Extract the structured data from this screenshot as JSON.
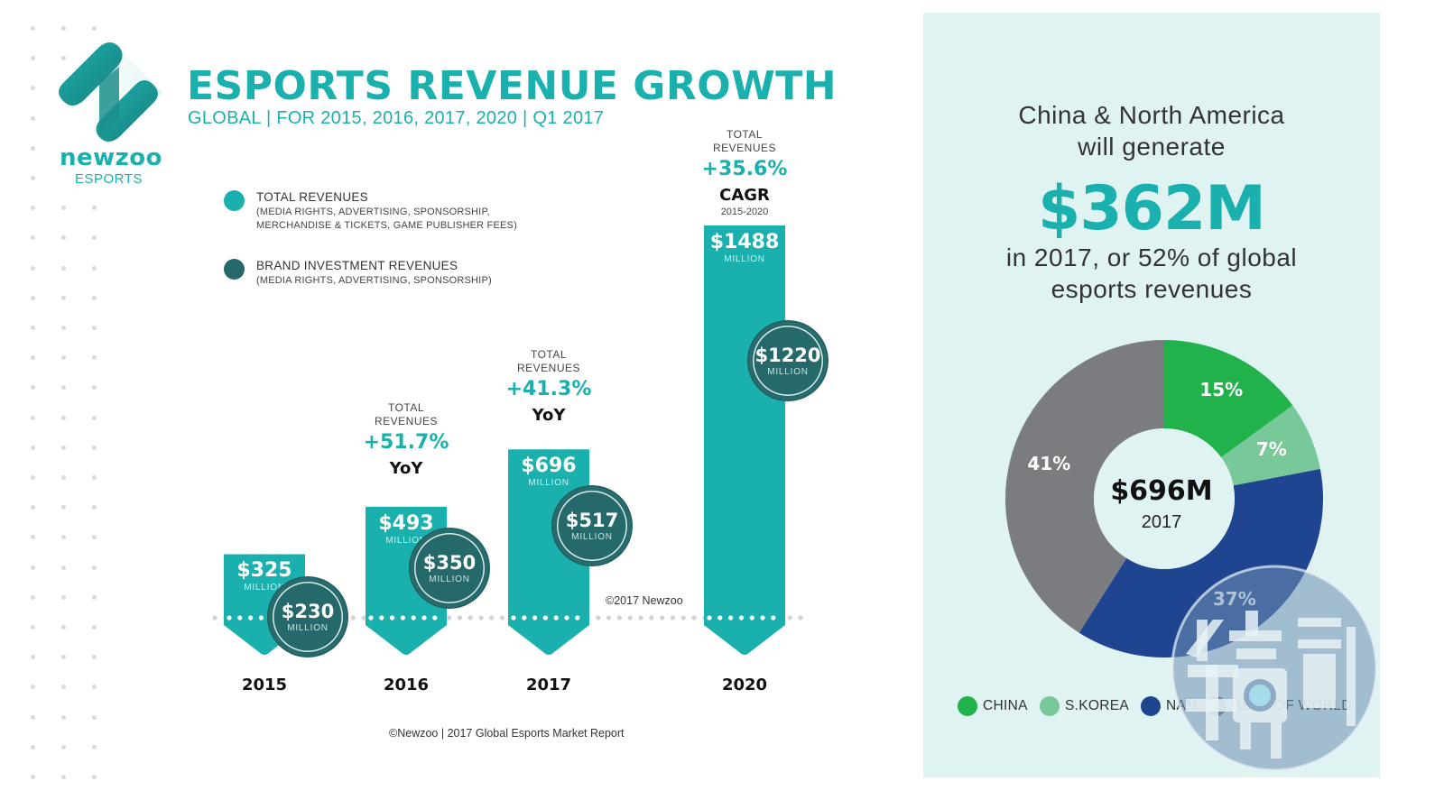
{
  "header": {
    "title": "ESPORTS REVENUE GROWTH",
    "subtitle": "GLOBAL | FOR 2015, 2016, 2017, 2020 | Q1 2017"
  },
  "logo": {
    "icon": "newzoo-logo-icon",
    "wordmark": "newzoo",
    "sub": "ESPORTS"
  },
  "legend": [
    {
      "title": "TOTAL REVENUES",
      "desc": "(MEDIA RIGHTS, ADVERTISING, SPONSORSHIP,\nMERCHANDISE & TICKETS, GAME PUBLISHER FEES)",
      "color": "#1ab0ad"
    },
    {
      "title": "BRAND INVESTMENT REVENUES",
      "desc": "(MEDIA RIGHTS, ADVERTISING, SPONSORSHIP)",
      "color": "#26696a"
    }
  ],
  "colors": {
    "accent": "#1ab0ad",
    "brand_investment": "#26696a",
    "panel_bg": "#dff3f2"
  },
  "annotations": [
    {
      "year": "2016",
      "label": "TOTAL\nREVENUES",
      "pct": "+51.7%",
      "kind": "YoY"
    },
    {
      "year": "2017",
      "label": "TOTAL\nREVENUES",
      "pct": "+41.3%",
      "kind": "YoY"
    },
    {
      "year": "2020",
      "label": "TOTAL\nREVENUES",
      "pct": "+35.6%",
      "kind": "CAGR",
      "range": "2015-2020"
    }
  ],
  "unit_label": "MILLION",
  "watermark_credit": "©2017 Newzoo",
  "footer_credit": "©Newzoo | 2017 Global Esports Market Report",
  "panel": {
    "line1": "China & North America",
    "line2": "will generate",
    "big_value": "$362M",
    "line3": "in 2017, or 52% of global",
    "line4": "esports revenues"
  },
  "chart_data": [
    {
      "type": "bar",
      "title": "ESPORTS REVENUE GROWTH",
      "subtitle": "GLOBAL | FOR 2015, 2016, 2017, 2020 | Q1 2017",
      "categories": [
        "2015",
        "2016",
        "2017",
        "2020"
      ],
      "unit": "$ MILLION",
      "series": [
        {
          "name": "TOTAL REVENUES",
          "values": [
            325,
            493,
            696,
            1488
          ],
          "labels": [
            "$325",
            "$493",
            "$696",
            "$1488"
          ],
          "color": "#1ab0ad"
        },
        {
          "name": "BRAND INVESTMENT REVENUES",
          "values": [
            230,
            350,
            517,
            1220
          ],
          "labels": [
            "$230",
            "$350",
            "$517",
            "$1220"
          ],
          "color": "#26696a"
        }
      ],
      "growth": [
        {
          "category": "2016",
          "value": "+51.7%",
          "type": "YoY"
        },
        {
          "category": "2017",
          "value": "+41.3%",
          "type": "YoY"
        },
        {
          "category": "2020",
          "value": "+35.6%",
          "type": "CAGR",
          "period": "2015-2020"
        }
      ],
      "grid": false,
      "legend_position": "top-left"
    },
    {
      "type": "pie",
      "variant": "donut",
      "center_label": "$696M",
      "center_sublabel": "2017",
      "slices": [
        {
          "name": "CHINA",
          "value": 15,
          "label": "15%",
          "color": "#22b24c"
        },
        {
          "name": "S.KOREA",
          "value": 7,
          "label": "7%",
          "color": "#78c89a"
        },
        {
          "name": "NAM",
          "value": 37,
          "label": "37%",
          "color": "#1f4590"
        },
        {
          "name": "REST OF WORLD",
          "value": 41,
          "label": "41%",
          "color": "#7b7c80"
        }
      ],
      "legend_position": "bottom"
    }
  ]
}
